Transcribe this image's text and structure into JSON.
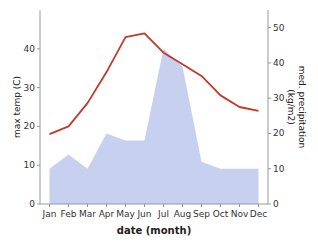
{
  "chart_data": {
    "type": "line",
    "xlabel": "date (month)",
    "ylabel": "max temp (C)",
    "y2label": "med. precipitation\n(kg/m2)",
    "categories": [
      "Jan",
      "Feb",
      "Mar",
      "Apr",
      "May",
      "Jun",
      "Jul",
      "Aug",
      "Sep",
      "Oct",
      "Nov",
      "Dec"
    ],
    "series": [
      {
        "type": "area",
        "axis": "y2",
        "color": "#c8d0f0",
        "values": [
          10,
          14,
          10,
          20,
          18,
          18,
          44,
          39,
          12,
          10,
          10,
          10
        ]
      },
      {
        "type": "line",
        "color": "#c0392b",
        "values": [
          18,
          20,
          26,
          34,
          43,
          44,
          39,
          36,
          33,
          28,
          25,
          24
        ]
      }
    ],
    "ylim": [
      0,
      50
    ],
    "yticks": [
      0,
      10,
      20,
      30,
      40
    ],
    "y2lim": [
      0,
      55
    ],
    "y2ticks": [
      0,
      10,
      20,
      30,
      40,
      50
    ],
    "grid": false
  }
}
